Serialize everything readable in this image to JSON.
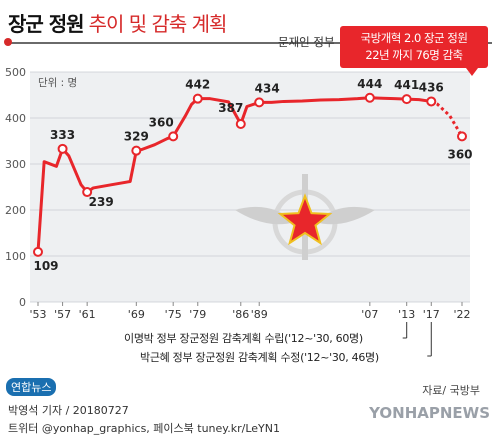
{
  "header": {
    "title_main": "장군 정원",
    "title_sub": "추이 및 감축 계획",
    "gov_label": "문재인 정부"
  },
  "annotation": {
    "line1": "국방개혁 2.0 장군 정원",
    "line2": "22년 까지 76명 감축"
  },
  "chart_data": {
    "type": "line",
    "unit_label": "단위 : 명",
    "ylim": [
      0,
      500
    ],
    "yticks": [
      "0",
      "100",
      "200",
      "300",
      "400",
      "500"
    ],
    "xticks": [
      "'53",
      "'57",
      "'61",
      "'69",
      "'75",
      "'79",
      "'86",
      "'89",
      "'07",
      "'13",
      "'17",
      "'22"
    ],
    "grid": true,
    "series": [
      {
        "x": [
          1953,
          1954,
          1956,
          1957,
          1958,
          1960,
          1961,
          1962,
          1965,
          1968,
          1969,
          1970,
          1972,
          1974,
          1975,
          1977,
          1978,
          1979,
          1981,
          1984,
          1986,
          1987,
          1989,
          1991,
          1993,
          1996,
          1999,
          2002,
          2005,
          2007,
          2009,
          2011,
          2013,
          2015,
          2017,
          2018,
          2020,
          2022
        ],
        "values": [
          109,
          305,
          295,
          333,
          318,
          255,
          239,
          248,
          255,
          262,
          329,
          332,
          342,
          355,
          360,
          405,
          430,
          442,
          442,
          435,
          387,
          425,
          434,
          434,
          436,
          437,
          439,
          440,
          442,
          444,
          443,
          442,
          441,
          440,
          436,
          430,
          405,
          360
        ]
      }
    ],
    "labels": [
      {
        "year": 1953,
        "text": "109"
      },
      {
        "year": 1957,
        "text": "333"
      },
      {
        "year": 1961,
        "text": "239"
      },
      {
        "year": 1969,
        "text": "329"
      },
      {
        "year": 1975,
        "text": "360"
      },
      {
        "year": 1979,
        "text": "442"
      },
      {
        "year": 1986,
        "text": "387"
      },
      {
        "year": 1989,
        "text": "434"
      },
      {
        "year": 2007,
        "text": "444"
      },
      {
        "year": 2013,
        "text": "441"
      },
      {
        "year": 2017,
        "text": "436"
      },
      {
        "year": 2022,
        "text": "360"
      }
    ],
    "line_color": "#e8262b"
  },
  "notes": {
    "mb": "이명박 정부 장군정원 감축계획 수립('12~'30, 60명)",
    "gh": "박근혜 정부 장군정원 감축계획 수정('12~'30, 46명)"
  },
  "footer": {
    "logo": "연합뉴스",
    "source": "자료/ 국방부",
    "credit1": "박영석 기자 / 20180727",
    "credit2": "트위터 @yonhap_graphics, 페이스북 tuney.kr/LeYN1",
    "watermark": "YONHAPNEWS"
  }
}
